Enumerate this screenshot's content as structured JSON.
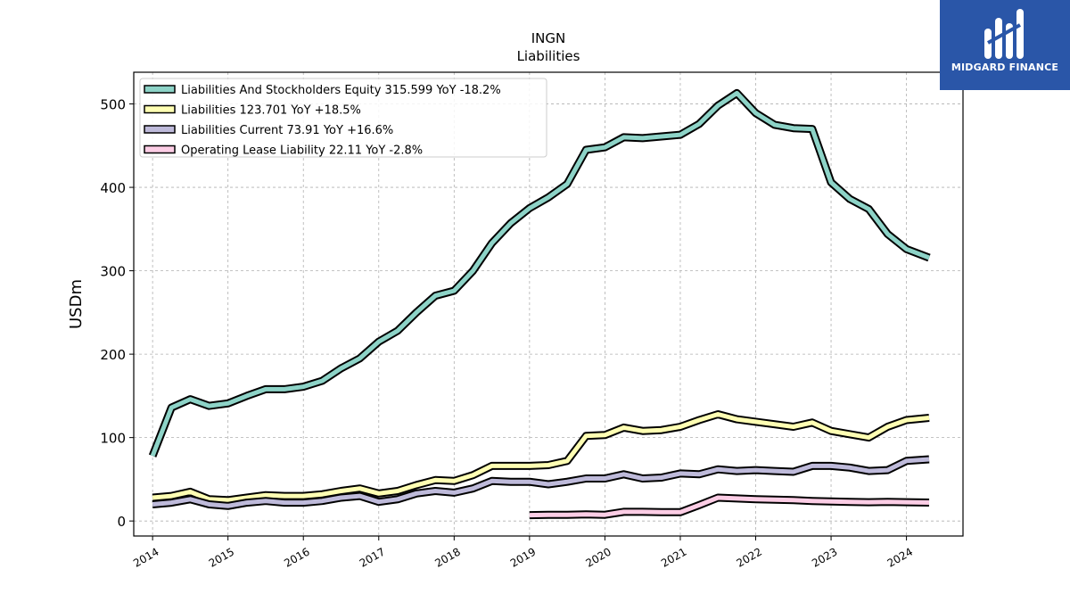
{
  "brand": {
    "name": "MIDGARD FINANCE",
    "bg_color": "#2a56a8"
  },
  "chart_data": {
    "type": "line",
    "title": "INGN",
    "subtitle": "Liabilities",
    "ylabel": "USDm",
    "xlabel": "",
    "xlim": [
      2013.75,
      2024.75
    ],
    "ylim": [
      -18,
      538
    ],
    "yticks": [
      0,
      100,
      200,
      300,
      400,
      500
    ],
    "xticks": [
      "2014",
      "2015",
      "2016",
      "2017",
      "2018",
      "2019",
      "2020",
      "2021",
      "2022",
      "2023",
      "2024"
    ],
    "grid": true,
    "legend_position": "top-left",
    "series": [
      {
        "name": "Liabilities And Stockholders Equity",
        "legend_label": "Liabilities And Stockholders Equity  315.599 YoY -18.2%",
        "color": "#8dd3c7",
        "points": [
          [
            2014.0,
            78
          ],
          [
            2014.25,
            136
          ],
          [
            2014.5,
            146
          ],
          [
            2014.75,
            138
          ],
          [
            2015.0,
            141
          ],
          [
            2015.25,
            150
          ],
          [
            2015.5,
            158
          ],
          [
            2015.75,
            158
          ],
          [
            2016.0,
            161
          ],
          [
            2016.25,
            168
          ],
          [
            2016.5,
            183
          ],
          [
            2016.75,
            195
          ],
          [
            2017.0,
            215
          ],
          [
            2017.25,
            228
          ],
          [
            2017.5,
            250
          ],
          [
            2017.75,
            270
          ],
          [
            2018.0,
            276
          ],
          [
            2018.25,
            300
          ],
          [
            2018.5,
            333
          ],
          [
            2018.75,
            357
          ],
          [
            2019.0,
            375
          ],
          [
            2019.25,
            388
          ],
          [
            2019.5,
            404
          ],
          [
            2019.75,
            445
          ],
          [
            2020.0,
            448
          ],
          [
            2020.25,
            460
          ],
          [
            2020.5,
            459
          ],
          [
            2020.75,
            461
          ],
          [
            2021.0,
            463
          ],
          [
            2021.25,
            476
          ],
          [
            2021.5,
            498
          ],
          [
            2021.75,
            513
          ],
          [
            2022.0,
            489
          ],
          [
            2022.25,
            475
          ],
          [
            2022.5,
            471
          ],
          [
            2022.75,
            470
          ],
          [
            2023.0,
            406
          ],
          [
            2023.25,
            386
          ],
          [
            2023.5,
            374
          ],
          [
            2023.75,
            344
          ],
          [
            2024.0,
            326
          ],
          [
            2024.3,
            315.599
          ]
        ]
      },
      {
        "name": "Liabilities",
        "legend_label": "Liabilities  123.701 YoY +18.5%",
        "color": "#ffffb3",
        "points": [
          [
            2014.0,
            28
          ],
          [
            2014.25,
            30
          ],
          [
            2014.5,
            35
          ],
          [
            2014.75,
            26
          ],
          [
            2015.0,
            25
          ],
          [
            2015.25,
            28
          ],
          [
            2015.5,
            31
          ],
          [
            2015.75,
            30
          ],
          [
            2016.0,
            30
          ],
          [
            2016.25,
            32
          ],
          [
            2016.5,
            36
          ],
          [
            2016.75,
            39
          ],
          [
            2017.0,
            33
          ],
          [
            2017.25,
            36
          ],
          [
            2017.5,
            43
          ],
          [
            2017.75,
            49
          ],
          [
            2018.0,
            48
          ],
          [
            2018.25,
            55
          ],
          [
            2018.5,
            66
          ],
          [
            2018.75,
            66
          ],
          [
            2019.0,
            66
          ],
          [
            2019.25,
            67
          ],
          [
            2019.5,
            72
          ],
          [
            2019.75,
            102
          ],
          [
            2020.0,
            103
          ],
          [
            2020.25,
            112
          ],
          [
            2020.5,
            108
          ],
          [
            2020.75,
            109
          ],
          [
            2021.0,
            113
          ],
          [
            2021.25,
            121
          ],
          [
            2021.5,
            128
          ],
          [
            2021.75,
            122
          ],
          [
            2022.0,
            119
          ],
          [
            2022.25,
            116
          ],
          [
            2022.5,
            113
          ],
          [
            2022.75,
            118
          ],
          [
            2023.0,
            108
          ],
          [
            2023.25,
            104
          ],
          [
            2023.5,
            100
          ],
          [
            2023.75,
            113
          ],
          [
            2024.0,
            121
          ],
          [
            2024.3,
            123.701
          ]
        ]
      },
      {
        "name": "Liabilities Current",
        "legend_label": "Liabilities Current  73.91 YoY +16.6%",
        "color": "#bebada",
        "points": [
          [
            2014.0,
            20
          ],
          [
            2014.25,
            22
          ],
          [
            2014.5,
            26
          ],
          [
            2014.75,
            20
          ],
          [
            2015.0,
            18
          ],
          [
            2015.25,
            22
          ],
          [
            2015.5,
            24
          ],
          [
            2015.75,
            22
          ],
          [
            2016.0,
            22
          ],
          [
            2016.25,
            24
          ],
          [
            2016.5,
            28
          ],
          [
            2016.75,
            30
          ],
          [
            2017.0,
            23
          ],
          [
            2017.25,
            26
          ],
          [
            2017.5,
            33
          ],
          [
            2017.75,
            36
          ],
          [
            2018.0,
            34
          ],
          [
            2018.25,
            39
          ],
          [
            2018.5,
            48
          ],
          [
            2018.75,
            47
          ],
          [
            2019.0,
            47
          ],
          [
            2019.25,
            44
          ],
          [
            2019.5,
            47
          ],
          [
            2019.75,
            51
          ],
          [
            2020.0,
            51
          ],
          [
            2020.25,
            56
          ],
          [
            2020.5,
            51
          ],
          [
            2020.75,
            52
          ],
          [
            2021.0,
            57
          ],
          [
            2021.25,
            56
          ],
          [
            2021.5,
            62
          ],
          [
            2021.75,
            60
          ],
          [
            2022.0,
            61
          ],
          [
            2022.25,
            60
          ],
          [
            2022.5,
            59
          ],
          [
            2022.75,
            66
          ],
          [
            2023.0,
            66
          ],
          [
            2023.25,
            64
          ],
          [
            2023.5,
            60
          ],
          [
            2023.75,
            61
          ],
          [
            2024.0,
            72
          ],
          [
            2024.3,
            73.91
          ]
        ]
      },
      {
        "name": "Operating Lease Liability",
        "legend_label": "Operating Lease Liability  22.11 YoY -2.8%",
        "color": "#fccde5",
        "points": [
          [
            2019.0,
            7
          ],
          [
            2019.25,
            7.5
          ],
          [
            2019.5,
            7.5
          ],
          [
            2019.75,
            8
          ],
          [
            2020.0,
            7.5
          ],
          [
            2020.25,
            11
          ],
          [
            2020.5,
            11
          ],
          [
            2020.75,
            10.5
          ],
          [
            2021.0,
            10.5
          ],
          [
            2021.25,
            19
          ],
          [
            2021.5,
            28
          ],
          [
            2021.75,
            27
          ],
          [
            2022.0,
            26
          ],
          [
            2022.25,
            25.5
          ],
          [
            2022.5,
            25
          ],
          [
            2022.75,
            24
          ],
          [
            2023.0,
            23.5
          ],
          [
            2023.25,
            23
          ],
          [
            2023.5,
            22.5
          ],
          [
            2023.75,
            23
          ],
          [
            2024.0,
            22.5
          ],
          [
            2024.3,
            22.11
          ]
        ]
      }
    ]
  }
}
